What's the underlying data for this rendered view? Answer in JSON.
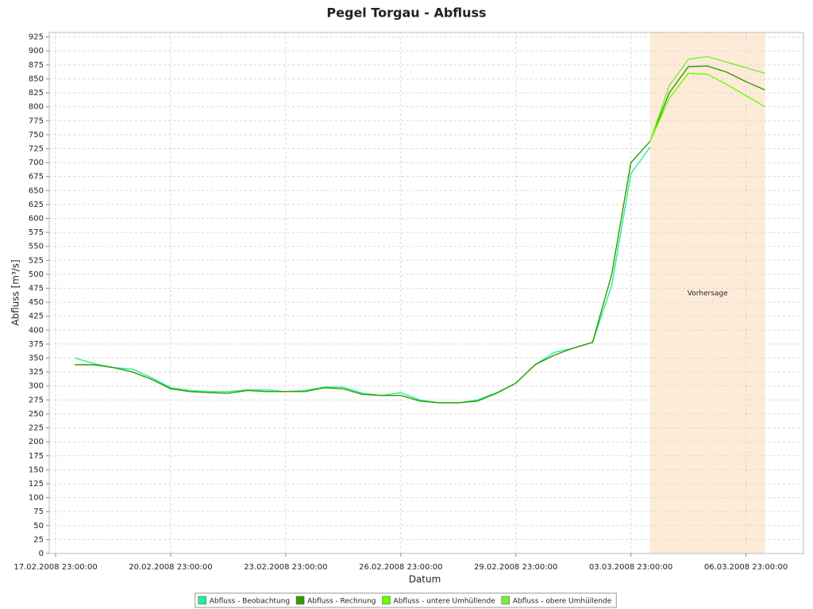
{
  "chart_data": {
    "type": "line",
    "title": "Pegel Torgau - Abfluss",
    "x_label": "Datum",
    "y_label": "Abfluss [m³/s]",
    "x": [
      "18.02.2008 11:00:00",
      "18.02.2008 23:00:00",
      "19.02.2008 11:00:00",
      "19.02.2008 23:00:00",
      "20.02.2008 11:00:00",
      "20.02.2008 23:00:00",
      "21.02.2008 11:00:00",
      "21.02.2008 23:00:00",
      "22.02.2008 11:00:00",
      "22.02.2008 23:00:00",
      "23.02.2008 11:00:00",
      "23.02.2008 23:00:00",
      "24.02.2008 11:00:00",
      "24.02.2008 23:00:00",
      "25.02.2008 11:00:00",
      "25.02.2008 23:00:00",
      "26.02.2008 11:00:00",
      "26.02.2008 23:00:00",
      "27.02.2008 11:00:00",
      "27.02.2008 23:00:00",
      "28.02.2008 11:00:00",
      "28.02.2008 23:00:00",
      "29.02.2008 11:00:00",
      "29.02.2008 23:00:00",
      "01.03.2008 11:00:00",
      "01.03.2008 23:00:00",
      "02.03.2008 11:00:00",
      "02.03.2008 23:00:00",
      "03.03.2008 11:00:00",
      "03.03.2008 23:00:00",
      "04.03.2008 11:00:00",
      "04.03.2008 23:00:00",
      "05.03.2008 11:00:00",
      "05.03.2008 23:00:00",
      "06.03.2008 11:00:00",
      "06.03.2008 23:00:00",
      "07.03.2008 11:00:00"
    ],
    "series": [
      {
        "name": "Abfluss - Beobachtung",
        "color": "#22ee99",
        "values": [
          350,
          340,
          333,
          330,
          315,
          297,
          292,
          290,
          290,
          293,
          293,
          290,
          292,
          298,
          298,
          287,
          283,
          288,
          275,
          270,
          270,
          275,
          288,
          305,
          338,
          360,
          368,
          378,
          480,
          680,
          728,
          null,
          null,
          null,
          null,
          null,
          null
        ]
      },
      {
        "name": "Abfluss - Rechnung",
        "color": "#339900",
        "values": [
          338,
          338,
          333,
          325,
          312,
          295,
          290,
          288,
          287,
          292,
          290,
          290,
          290,
          297,
          295,
          285,
          283,
          283,
          273,
          270,
          270,
          273,
          287,
          305,
          338,
          355,
          368,
          378,
          500,
          700,
          738,
          825,
          872,
          873,
          862,
          845,
          830
        ]
      },
      {
        "name": "Abfluss - untere Umhüllende",
        "color": "#66ff00",
        "values": [
          null,
          null,
          null,
          null,
          null,
          null,
          null,
          null,
          null,
          null,
          null,
          null,
          null,
          null,
          null,
          null,
          null,
          null,
          null,
          null,
          null,
          null,
          null,
          null,
          null,
          null,
          null,
          null,
          null,
          null,
          738,
          815,
          860,
          858,
          840,
          820,
          800
        ]
      },
      {
        "name": "Abfluss - obere Umhüllende",
        "color": "#77ee33",
        "values": [
          null,
          null,
          null,
          null,
          null,
          null,
          null,
          null,
          null,
          null,
          null,
          null,
          null,
          null,
          null,
          null,
          null,
          null,
          null,
          null,
          null,
          null,
          null,
          null,
          null,
          null,
          null,
          null,
          null,
          null,
          738,
          838,
          885,
          890,
          880,
          870,
          860
        ]
      }
    ],
    "xlim": [
      "17.02.2008 19:00:00",
      "08.03.2008 11:00:00"
    ],
    "xticks": [
      "17.02.2008 23:00:00",
      "20.02.2008 23:00:00",
      "23.02.2008 23:00:00",
      "26.02.2008 23:00:00",
      "29.02.2008 23:00:00",
      "03.03.2008 23:00:00",
      "06.03.2008 23:00:00"
    ],
    "ylim": [
      0,
      933
    ],
    "yticks": [
      0,
      25,
      50,
      75,
      100,
      125,
      150,
      175,
      200,
      225,
      250,
      275,
      300,
      325,
      350,
      375,
      400,
      425,
      450,
      475,
      500,
      525,
      550,
      575,
      600,
      625,
      650,
      675,
      700,
      725,
      750,
      775,
      800,
      825,
      850,
      875,
      900,
      925
    ],
    "grid": true,
    "forecast": {
      "label": "Vorhersage",
      "start": "04.03.2008 11:00:00",
      "end": "07.03.2008 11:00:00",
      "color": "#fdebd8"
    },
    "legend": "bottom"
  }
}
